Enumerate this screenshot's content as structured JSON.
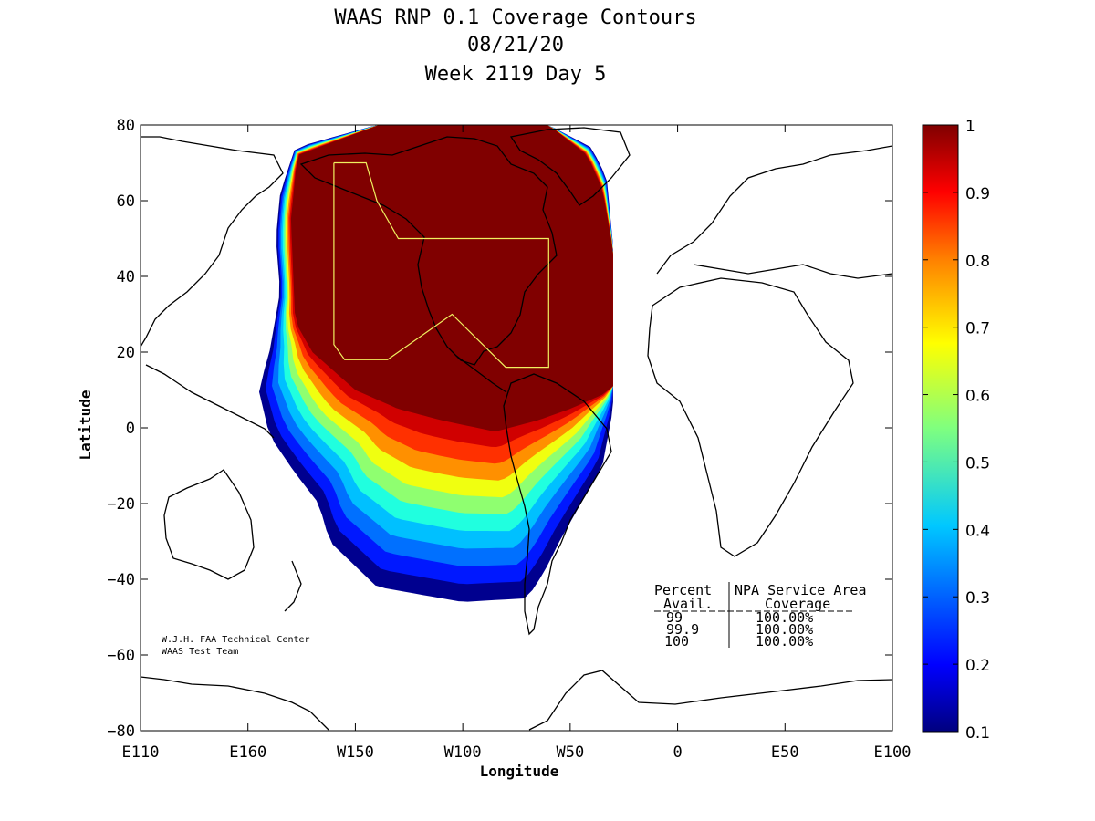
{
  "chart_data": {
    "type": "heatmap",
    "title_lines": [
      "WAAS RNP 0.1 Coverage Contours",
      "08/21/20",
      "Week 2119 Day 5"
    ],
    "xlabel": "Longitude",
    "ylabel": "Latitude",
    "xlim": [
      -250,
      100
    ],
    "ylim": [
      -80,
      80
    ],
    "x_ticks": [
      {
        "value": -250,
        "label": "E110"
      },
      {
        "value": -200,
        "label": "E160"
      },
      {
        "value": -150,
        "label": "W150"
      },
      {
        "value": -100,
        "label": "W100"
      },
      {
        "value": -50,
        "label": "W50"
      },
      {
        "value": 0,
        "label": "0"
      },
      {
        "value": 50,
        "label": "E50"
      },
      {
        "value": 100,
        "label": "E100"
      }
    ],
    "y_ticks": [
      {
        "value": 80,
        "label": "80"
      },
      {
        "value": 60,
        "label": "60"
      },
      {
        "value": 40,
        "label": "40"
      },
      {
        "value": 20,
        "label": "20"
      },
      {
        "value": 0,
        "label": "0"
      },
      {
        "value": -20,
        "label": "−20"
      },
      {
        "value": -40,
        "label": "−40"
      },
      {
        "value": -60,
        "label": "−60"
      },
      {
        "value": -80,
        "label": "−80"
      }
    ],
    "colorbar": {
      "min": 0.1,
      "max": 1,
      "ticks": [
        "1",
        "0.9",
        "0.8",
        "0.7",
        "0.6",
        "0.5",
        "0.4",
        "0.3",
        "0.2",
        "0.1"
      ],
      "colormap": "jet"
    },
    "contour_levels": [
      {
        "value": 0.1,
        "color": "#00008f"
      },
      {
        "value": 0.2,
        "color": "#0018ff"
      },
      {
        "value": 0.3,
        "color": "#0070ff"
      },
      {
        "value": 0.4,
        "color": "#00c0ff"
      },
      {
        "value": 0.5,
        "color": "#20ffdf"
      },
      {
        "value": 0.6,
        "color": "#8fff70"
      },
      {
        "value": 0.7,
        "color": "#f0ff10"
      },
      {
        "value": 0.8,
        "color": "#ff9000"
      },
      {
        "value": 0.9,
        "color": "#ff3000"
      },
      {
        "value": 0.95,
        "color": "#d00000"
      },
      {
        "value": 1.0,
        "color": "#800000"
      }
    ],
    "coverage_region": {
      "description": "WAAS coverage over North America and eastern Pacific",
      "full_availability_outline": [
        [
          -177,
          72
        ],
        [
          -139,
          80
        ],
        [
          -60,
          80
        ],
        [
          -42,
          72
        ],
        [
          -35,
          63
        ],
        [
          -30,
          47
        ],
        [
          -30,
          10
        ],
        [
          -50,
          5
        ],
        [
          -65,
          2
        ],
        [
          -85,
          -1
        ],
        [
          -110,
          2
        ],
        [
          -130,
          5
        ],
        [
          -150,
          10
        ],
        [
          -170,
          20
        ],
        [
          -178,
          28
        ],
        [
          -180,
          55
        ]
      ],
      "outer_outline": [
        [
          -178,
          74
        ],
        [
          -140,
          80
        ],
        [
          -60,
          80
        ],
        [
          -40,
          74
        ],
        [
          -33,
          66
        ],
        [
          -30,
          48
        ],
        [
          -30,
          5
        ],
        [
          -35,
          -10
        ],
        [
          -45,
          -20
        ],
        [
          -55,
          -30
        ],
        [
          -62,
          -38
        ],
        [
          -70,
          -45
        ],
        [
          -100,
          -46
        ],
        [
          -140,
          -42
        ],
        [
          -162,
          -30
        ],
        [
          -167,
          -20
        ],
        [
          -178,
          -12
        ],
        [
          -190,
          -2
        ],
        [
          -195,
          10
        ],
        [
          -190,
          20
        ],
        [
          -185,
          36
        ],
        [
          -187,
          50
        ],
        [
          -185,
          62
        ]
      ]
    },
    "service_area_polygon": [
      [
        -160,
        70
      ],
      [
        -145,
        70
      ],
      [
        -140,
        60
      ],
      [
        -130,
        50
      ],
      [
        -60,
        50
      ],
      [
        -60,
        16
      ],
      [
        -80,
        16
      ],
      [
        -105,
        30
      ],
      [
        -135,
        18
      ],
      [
        -155,
        18
      ],
      [
        -160,
        22
      ],
      [
        -160,
        70
      ]
    ],
    "stats_table": {
      "headers": [
        "Percent",
        "NPA Service Area"
      ],
      "subheaders": [
        "Avail.",
        "Coverage"
      ],
      "rows": [
        [
          "99",
          "100.00%"
        ],
        [
          "99.9",
          "100.00%"
        ],
        [
          "100",
          "100.00%"
        ]
      ]
    },
    "credit_lines": [
      "W.J.H. FAA Technical Center",
      "WAAS Test Team"
    ]
  }
}
